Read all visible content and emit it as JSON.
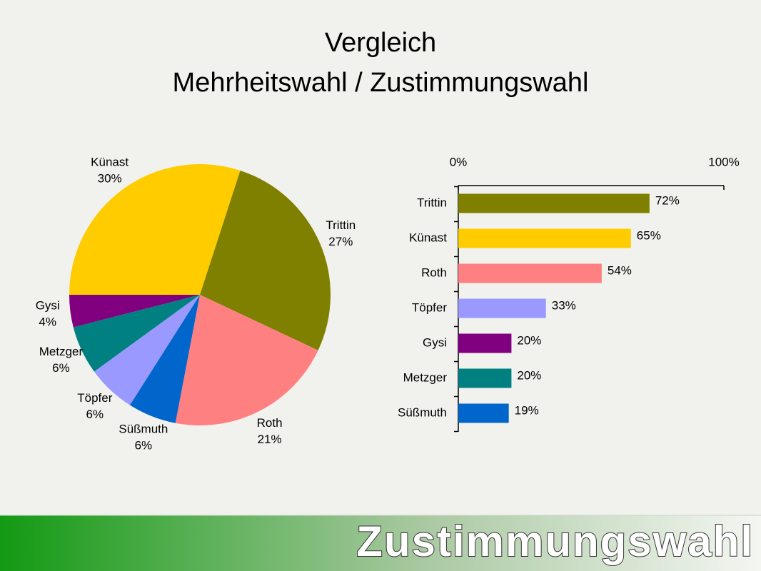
{
  "slide": {
    "title": [
      "Vergleich",
      "Mehrheitswahl / Zustimmungswahl"
    ],
    "footer": "Zustimmungswahl"
  },
  "chart_data": [
    {
      "type": "pie",
      "categories": [
        "Künast",
        "Trittin",
        "Roth",
        "Süßmuth",
        "Töpfer",
        "Metzger",
        "Gysi"
      ],
      "values": [
        30,
        27,
        21,
        6,
        6,
        6,
        4
      ],
      "value_labels": [
        "30%",
        "27%",
        "21%",
        "6%",
        "6%",
        "6%",
        "4%"
      ],
      "colors": [
        "#ffcc00",
        "#808000",
        "#ff8080",
        "#0066cc",
        "#9999ff",
        "#008080",
        "#800080"
      ]
    },
    {
      "type": "hbar",
      "categories": [
        "Trittin",
        "Künast",
        "Roth",
        "Töpfer",
        "Gysi",
        "Metzger",
        "Süßmuth"
      ],
      "values": [
        72,
        65,
        54,
        33,
        20,
        20,
        19
      ],
      "value_labels": [
        "72%",
        "65%",
        "54%",
        "33%",
        "20%",
        "20%",
        "19%"
      ],
      "colors": [
        "#808000",
        "#ffcc00",
        "#ff8080",
        "#9999ff",
        "#800080",
        "#008080",
        "#0066cc"
      ],
      "xlim": [
        0,
        100
      ],
      "xticks": [
        {
          "value": 0,
          "label": "0%"
        },
        {
          "value": 100,
          "label": "100%"
        }
      ]
    }
  ]
}
